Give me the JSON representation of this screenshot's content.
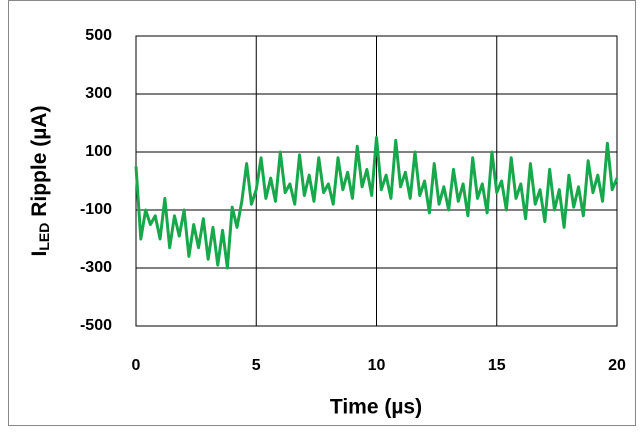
{
  "chart_data": {
    "type": "line",
    "xlabel": "Time (µs)",
    "ylabel": {
      "main": "I",
      "sub": "LED",
      "rest": " Ripple (µA)"
    },
    "xlim": [
      0,
      20
    ],
    "xticks": [
      0,
      5,
      10,
      15,
      20
    ],
    "ylim": [
      -500,
      500
    ],
    "yticks": [
      500,
      300,
      100,
      -100,
      -300,
      -500
    ],
    "grid": true,
    "x": [
      0,
      0.2,
      0.4,
      0.6,
      0.8,
      1,
      1.2,
      1.4,
      1.6,
      1.8,
      2,
      2.2,
      2.4,
      2.6,
      2.8,
      3,
      3.2,
      3.4,
      3.6,
      3.8,
      4,
      4.2,
      4.4,
      4.6,
      4.8,
      5,
      5.2,
      5.4,
      5.6,
      5.8,
      6,
      6.2,
      6.4,
      6.6,
      6.8,
      7,
      7.2,
      7.4,
      7.6,
      7.8,
      8,
      8.2,
      8.4,
      8.6,
      8.8,
      9,
      9.2,
      9.4,
      9.6,
      9.8,
      10,
      10.2,
      10.4,
      10.6,
      10.8,
      11,
      11.2,
      11.4,
      11.6,
      11.8,
      12,
      12.2,
      12.4,
      12.6,
      12.8,
      13,
      13.2,
      13.4,
      13.6,
      13.8,
      14,
      14.2,
      14.4,
      14.6,
      14.8,
      15,
      15.2,
      15.4,
      15.6,
      15.8,
      16,
      16.2,
      16.4,
      16.6,
      16.8,
      17,
      17.2,
      17.4,
      17.6,
      17.8,
      18,
      18.2,
      18.4,
      18.6,
      18.8,
      19,
      19.2,
      19.4,
      19.6,
      19.8,
      20
    ],
    "series": [
      {
        "color": "#18a84c",
        "values": [
          50,
          -200,
          -100,
          -150,
          -120,
          -200,
          -60,
          -230,
          -120,
          -190,
          -100,
          -260,
          -150,
          -230,
          -130,
          -270,
          -160,
          -290,
          -170,
          -300,
          -90,
          -160,
          -70,
          60,
          -80,
          -30,
          80,
          -60,
          10,
          -70,
          100,
          -40,
          -10,
          -80,
          90,
          -50,
          20,
          -70,
          80,
          -40,
          -10,
          -80,
          80,
          -30,
          30,
          -60,
          120,
          -20,
          40,
          -50,
          150,
          -30,
          20,
          -60,
          140,
          -20,
          30,
          -60,
          100,
          -50,
          0,
          -110,
          60,
          -80,
          -20,
          -100,
          40,
          -70,
          -10,
          -120,
          80,
          -60,
          -10,
          -110,
          100,
          -40,
          0,
          -100,
          80,
          -60,
          -10,
          -130,
          60,
          -80,
          -30,
          -140,
          40,
          -100,
          -30,
          -160,
          20,
          -90,
          -20,
          -120,
          70,
          -40,
          20,
          -70,
          130,
          -30,
          10
        ]
      }
    ]
  }
}
